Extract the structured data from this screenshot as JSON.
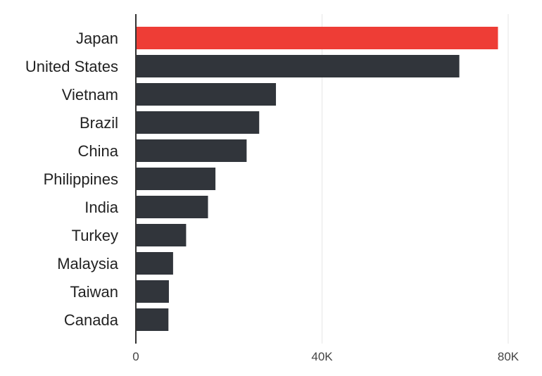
{
  "chart_data": {
    "type": "bar",
    "orientation": "horizontal",
    "title": "",
    "xlabel": "",
    "ylabel": "",
    "categories": [
      "Japan",
      "United States",
      "Vietnam",
      "Brazil",
      "China",
      "Philippines",
      "India",
      "Turkey",
      "Malaysia",
      "Taiwan",
      "Canada"
    ],
    "values": [
      77800,
      69500,
      30100,
      26500,
      23800,
      17100,
      15500,
      10800,
      8000,
      7100,
      7000
    ],
    "highlight_index": 0,
    "xlim": [
      0,
      80000
    ],
    "ticks": [
      {
        "value": 0,
        "label": "0"
      },
      {
        "value": 40000,
        "label": "40K"
      },
      {
        "value": 80000,
        "label": "80K"
      }
    ],
    "grid": true,
    "legend": "none",
    "colors": {
      "highlight": "#ee3d36",
      "bar": "#31353b",
      "grid": "#e6e6e6",
      "axis": "#333333"
    }
  }
}
